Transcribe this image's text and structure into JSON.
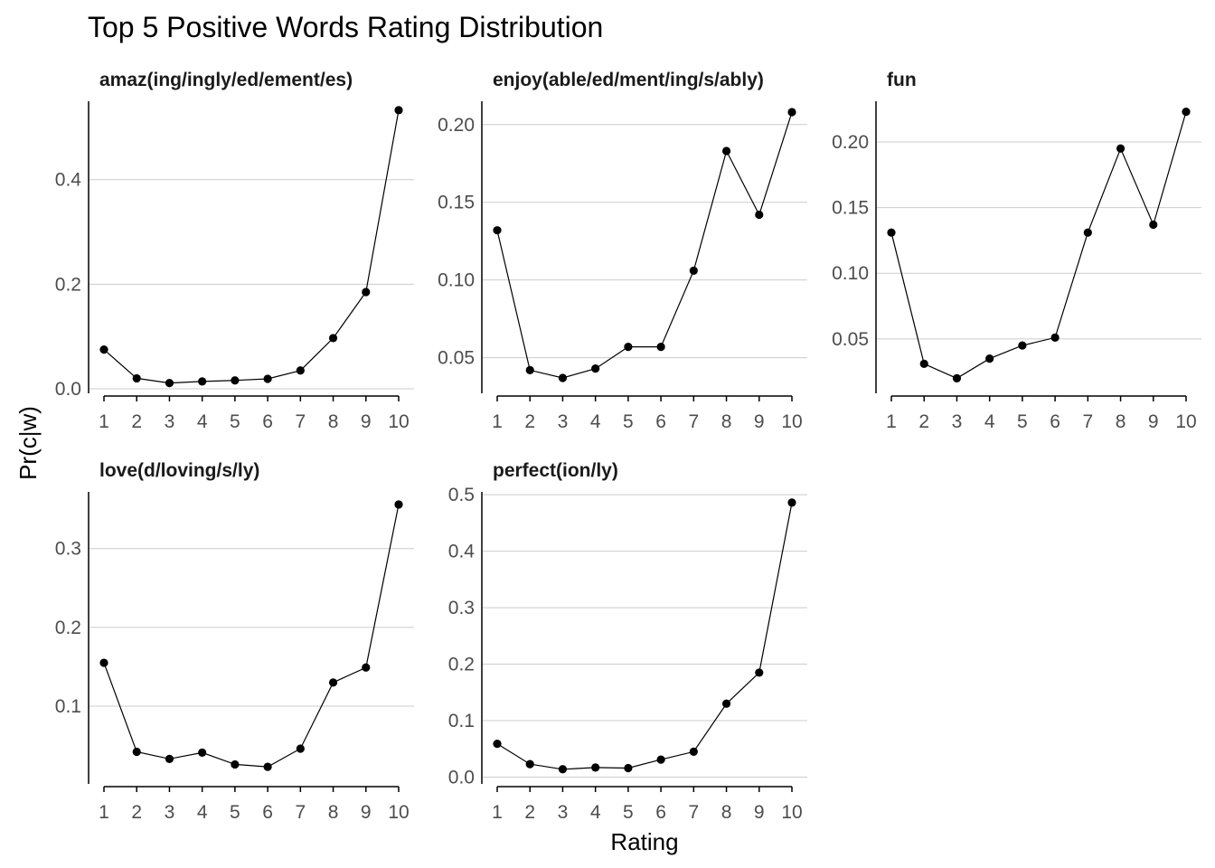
{
  "chart_data": {
    "type": "line",
    "title": "Top 5 Positive Words Rating Distribution",
    "xlabel": "Rating",
    "ylabel": "Pr(c|w)",
    "x": [
      1,
      2,
      3,
      4,
      5,
      6,
      7,
      8,
      9,
      10
    ],
    "grid": "horizontal major gridlines",
    "facets": [
      {
        "name": "amaz(ing/ingly/ed/ement/es)",
        "values": [
          0.075,
          0.02,
          0.011,
          0.014,
          0.016,
          0.019,
          0.035,
          0.097,
          0.185,
          0.533
        ],
        "ylim": [
          0.0,
          0.55
        ],
        "yticks": [
          0.0,
          0.2,
          0.4
        ],
        "ytick_labels": [
          "0.0",
          "0.2",
          "0.4"
        ]
      },
      {
        "name": "enjoy(able/ed/ment/ing/s/ably)",
        "values": [
          0.132,
          0.042,
          0.037,
          0.043,
          0.057,
          0.057,
          0.106,
          0.183,
          0.142,
          0.208
        ],
        "ylim": [
          0.03,
          0.215
        ],
        "yticks": [
          0.05,
          0.1,
          0.15,
          0.2
        ],
        "ytick_labels": [
          "0.05",
          "0.10",
          "0.15",
          "0.20"
        ]
      },
      {
        "name": "fun",
        "values": [
          0.131,
          0.031,
          0.02,
          0.035,
          0.045,
          0.051,
          0.131,
          0.195,
          0.137,
          0.223
        ],
        "ylim": [
          0.012,
          0.231
        ],
        "yticks": [
          0.05,
          0.1,
          0.15,
          0.2
        ],
        "ytick_labels": [
          "0.05",
          "0.10",
          "0.15",
          "0.20"
        ]
      },
      {
        "name": "love(d/loving/s/ly)",
        "values": [
          0.155,
          0.042,
          0.033,
          0.041,
          0.026,
          0.023,
          0.046,
          0.13,
          0.149,
          0.356
        ],
        "ylim": [
          0.007,
          0.372
        ],
        "yticks": [
          0.1,
          0.2,
          0.3
        ],
        "ytick_labels": [
          "0.1",
          "0.2",
          "0.3"
        ]
      },
      {
        "name": "perfect(ion/ly)",
        "values": [
          0.059,
          0.023,
          0.014,
          0.017,
          0.016,
          0.031,
          0.045,
          0.13,
          0.185,
          0.486
        ],
        "ylim": [
          -0.004,
          0.505
        ],
        "yticks": [
          0.0,
          0.1,
          0.2,
          0.3,
          0.4,
          0.5
        ],
        "ytick_labels": [
          "0.0",
          "0.1",
          "0.2",
          "0.3",
          "0.4",
          "0.5"
        ]
      }
    ]
  }
}
